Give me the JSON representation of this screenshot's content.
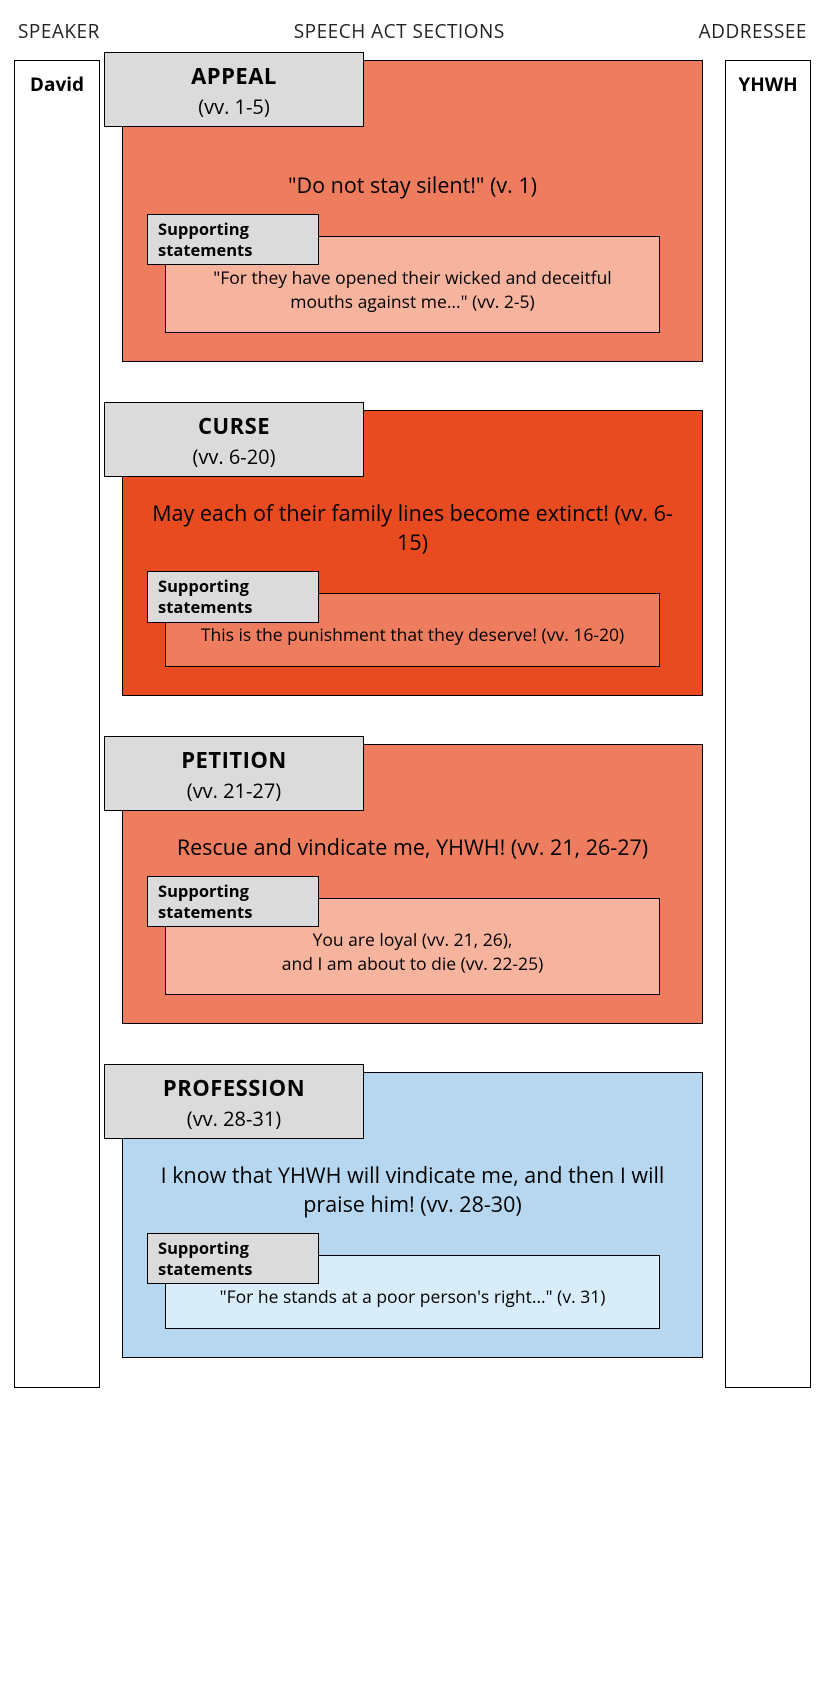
{
  "headers": {
    "speaker": "SPEAKER",
    "center": "SPEECH ACT SECTIONS",
    "addressee": "ADDRESSEE"
  },
  "speaker_name": "David",
  "addressee_name": "YHWH",
  "colors": {
    "label_bg": "#dbdbdb",
    "border": "#000000",
    "appeal_main": "#ee7c5e",
    "appeal_sub": "#f6b39e",
    "curse_main": "#e84b20",
    "curse_sub": "#ee7c5e",
    "petition_main": "#ee7c5e",
    "petition_sub": "#f6b39e",
    "profession_main": "#b6d7ef",
    "profession_sub": "#d8ecf9"
  },
  "sections": [
    {
      "title": "APPEAL",
      "verses": "(vv. 1-5)",
      "main_text": "\"Do not stay silent!\" (v. 1)",
      "support_label": "Supporting statements",
      "support_text": "\"For they have opened their wicked and deceitful mouths against me...\" (vv. 2-5)",
      "main_bg_key": "appeal_main",
      "sub_bg_key": "appeal_sub",
      "top_pad": 110
    },
    {
      "title": "CURSE",
      "verses": "(vv. 6-20)",
      "main_text": "May each of their family lines become extinct! (vv. 6-15)",
      "support_label": "Supporting statements",
      "support_text": "This is the punishment that they deserve! (vv. 16-20)",
      "main_bg_key": "curse_main",
      "sub_bg_key": "curse_sub",
      "top_pad": 88
    },
    {
      "title": "PETITION",
      "verses": "(vv. 21-27)",
      "main_text": "Rescue and vindicate me, YHWH! (vv. 21, 26-27)",
      "support_label": "Supporting statements",
      "support_text": "You are loyal (vv. 21, 26),\nand I am about to die (vv. 22-25)",
      "main_bg_key": "petition_main",
      "sub_bg_key": "petition_sub",
      "top_pad": 88
    },
    {
      "title": "PROFESSION",
      "verses": "(vv. 28-31)",
      "main_text": "I know that YHWH will vindicate me, and then I will praise him! (vv. 28-30)",
      "support_label": "Supporting statements",
      "support_text": "\"For he stands at a poor person's right...\" (v. 31)",
      "main_bg_key": "profession_main",
      "sub_bg_key": "profession_sub",
      "top_pad": 88
    }
  ]
}
